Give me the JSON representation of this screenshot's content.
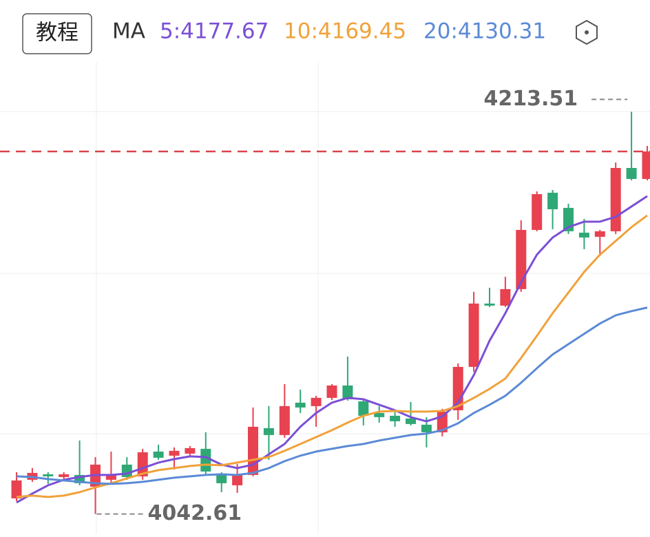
{
  "chart_data": {
    "type": "candlestick",
    "button": "教程",
    "ma_label": "MA",
    "ylim": [
      4034,
      4261
    ],
    "up_color": "#e8414f",
    "down_color": "#2fa876",
    "candles": {
      "open": [
        4049.24,
        4057.14,
        4059.48,
        4058.31,
        4059.19,
        4054.22,
        4057.14,
        4063.58,
        4058.6,
        4069.13,
        4067.38,
        4068.26,
        4070.3,
        4059.77,
        4054.8,
        4059.19,
        4079.08,
        4076.15,
        4089.9,
        4088.44,
        4091.95,
        4097.21,
        4090.48,
        4085.51,
        4084.34,
        4083.17,
        4080.54,
        4077.32,
        4086.68,
        4105.11,
        4132.02,
        4131.14,
        4138.16,
        4163.31,
        4179.11,
        4172.67,
        4162.14,
        4160.39,
        4162.73,
        4189.63,
        4184.96
      ],
      "high": [
        4060.36,
        4062.11,
        4060.36,
        4060.36,
        4073.81,
        4066.79,
        4069.13,
        4066.79,
        4070.3,
        4072.06,
        4070.89,
        4071.47,
        4077.32,
        4060.36,
        4063.87,
        4087.85,
        4088.44,
        4097.8,
        4095.46,
        4092.82,
        4097.8,
        4109.5,
        4091.36,
        4088.44,
        4086.68,
        4090.19,
        4083.76,
        4087.27,
        4106.57,
        4136.99,
        4138.74,
        4143.42,
        4167.41,
        4179.69,
        4180.28,
        4174.43,
        4167.99,
        4163.31,
        4191.97,
        4213.51,
        4198.99
      ],
      "low": [
        4048.07,
        4056.26,
        4055.39,
        4057.43,
        4054.8,
        4042.61,
        4055.68,
        4057.14,
        4057.14,
        4065.62,
        4061.53,
        4066.79,
        4059.19,
        4051.88,
        4051.58,
        4058.6,
        4065.62,
        4074.98,
        4085.51,
        4079.66,
        4091.07,
        4090.78,
        4080.25,
        4081.42,
        4079.66,
        4080.25,
        4070.89,
        4075.57,
        4082.59,
        4103.06,
        4130.55,
        4130.55,
        4136.99,
        4162.73,
        4163.6,
        4161.56,
        4155.12,
        4152.2,
        4161.56,
        4184.37,
        4184.37
      ],
      "close": [
        4056.85,
        4060.07,
        4058.6,
        4059.48,
        4055.68,
        4063.58,
        4059.19,
        4058.31,
        4068.84,
        4066.5,
        4069.43,
        4070.6,
        4060.65,
        4055.68,
        4059.19,
        4079.66,
        4076.15,
        4088.44,
        4087.85,
        4091.95,
        4097.21,
        4091.36,
        4084.34,
        4083.76,
        4082.0,
        4080.84,
        4077.32,
        4086.1,
        4105.11,
        4132.02,
        4131.14,
        4138.16,
        4163.31,
        4178.52,
        4172.09,
        4162.73,
        4160.09,
        4162.73,
        4189.63,
        4184.96,
        4196.65
      ]
    },
    "ma_series": [
      {
        "name": "5:4177.67",
        "color": "#7b4fd6",
        "values": [
          4047.49,
          4051.29,
          4054.8,
          4057.14,
          4058.31,
          4059.19,
          4059.19,
          4059.77,
          4062.11,
          4064.45,
          4065.92,
          4067.09,
          4066.79,
          4063.58,
          4062.11,
          4063.58,
          4067.96,
          4072.35,
          4079.66,
          4085.51,
          4089.9,
          4091.95,
          4091.36,
          4089.02,
          4086.68,
          4083.76,
          4082.0,
          4084.05,
          4089.9,
          4101.6,
          4116.22,
          4127.92,
          4141.08,
          4152.78,
          4160.09,
          4164.48,
          4166.82,
          4166.82,
          4168.87,
          4173.26,
          4177.67
        ]
      },
      {
        "name": "10:4169.45",
        "color": "#f0a23a",
        "values": [
          4049.83,
          4050.41,
          4049.83,
          4050.41,
          4051.88,
          4053.92,
          4055.68,
          4057.73,
          4059.77,
          4061.24,
          4062.11,
          4062.99,
          4063.58,
          4063.28,
          4064.45,
          4065.62,
          4066.79,
          4069.43,
          4072.35,
          4075.28,
          4078.2,
          4081.42,
          4084.34,
          4086.1,
          4086.39,
          4086.1,
          4086.1,
          4086.39,
          4088.44,
          4091.95,
          4095.75,
          4100.14,
          4108.91,
          4118.27,
          4127.92,
          4136.7,
          4145.47,
          4152.78,
          4158.63,
          4164.48,
          4169.45
        ]
      },
      {
        "name": "20:4130.31",
        "color": "#5b8ad6",
        "values": [
          4058.6,
          4058.31,
          4057.43,
          4056.85,
          4056.26,
          4055.68,
          4055.39,
          4055.68,
          4056.26,
          4057.14,
          4058.02,
          4058.6,
          4059.19,
          4059.48,
          4059.19,
          4060.07,
          4062.11,
          4065.04,
          4067.38,
          4069.13,
          4070.3,
          4071.47,
          4072.35,
          4073.81,
          4074.98,
          4076.15,
          4076.74,
          4078.2,
          4081.12,
          4085.51,
          4089.02,
          4092.82,
          4098.38,
          4104.52,
          4110.37,
          4114.76,
          4119.15,
          4123.53,
          4127.04,
          4128.8,
          4130.31
        ]
      }
    ]
  }
}
